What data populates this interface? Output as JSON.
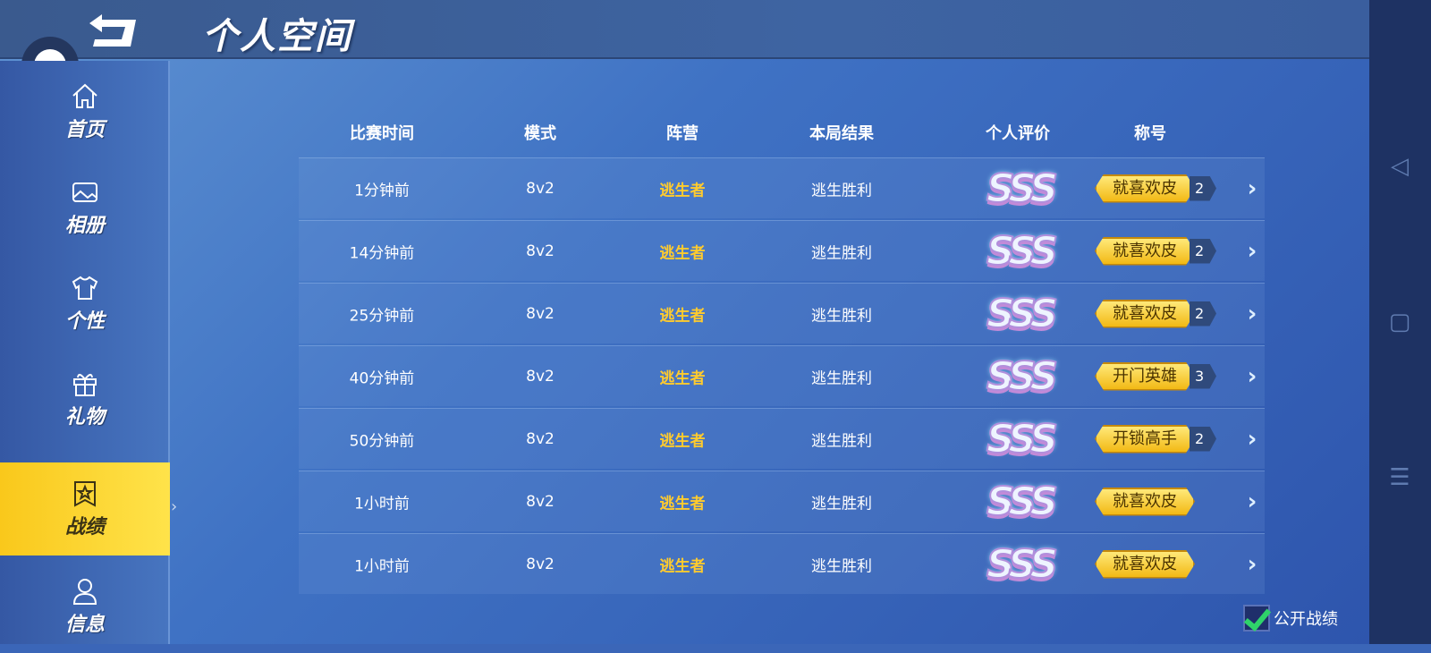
{
  "header": {
    "title": "个人空间",
    "back_icon": "back-arrow-icon"
  },
  "sidebar": {
    "items": [
      {
        "label": "首页",
        "icon": "home-icon"
      },
      {
        "label": "相册",
        "icon": "image-icon"
      },
      {
        "label": "个性",
        "icon": "shirt-icon"
      },
      {
        "label": "礼物",
        "icon": "gift-icon"
      },
      {
        "label": "战绩",
        "icon": "record-badge-icon",
        "active": true
      },
      {
        "label": "信息",
        "icon": "user-icon"
      }
    ]
  },
  "table": {
    "headers": [
      "比赛时间",
      "模式",
      "阵营",
      "本局结果",
      "个人评价",
      "称号"
    ],
    "rows": [
      {
        "time": "1分钟前",
        "mode": "8v2",
        "camp": "逃生者",
        "result": "逃生胜利",
        "rating": "SSS",
        "title": "就喜欢皮",
        "count": "2"
      },
      {
        "time": "14分钟前",
        "mode": "8v2",
        "camp": "逃生者",
        "result": "逃生胜利",
        "rating": "SSS",
        "title": "就喜欢皮",
        "count": "2"
      },
      {
        "time": "25分钟前",
        "mode": "8v2",
        "camp": "逃生者",
        "result": "逃生胜利",
        "rating": "SSS",
        "title": "就喜欢皮",
        "count": "2"
      },
      {
        "time": "40分钟前",
        "mode": "8v2",
        "camp": "逃生者",
        "result": "逃生胜利",
        "rating": "SSS",
        "title": "开门英雄",
        "count": "3"
      },
      {
        "time": "50分钟前",
        "mode": "8v2",
        "camp": "逃生者",
        "result": "逃生胜利",
        "rating": "SSS",
        "title": "开锁高手",
        "count": "2"
      },
      {
        "time": "1小时前",
        "mode": "8v2",
        "camp": "逃生者",
        "result": "逃生胜利",
        "rating": "SSS",
        "title": "就喜欢皮",
        "count": null
      },
      {
        "time": "1小时前",
        "mode": "8v2",
        "camp": "逃生者",
        "result": "逃生胜利",
        "rating": "SSS",
        "title": "就喜欢皮",
        "count": null
      }
    ]
  },
  "footer": {
    "public_label": "公开战绩",
    "public_checked": true
  },
  "colors": {
    "accent": "#ffcb2e",
    "active_tab": "#f9c81b",
    "check": "#2fd36a"
  }
}
